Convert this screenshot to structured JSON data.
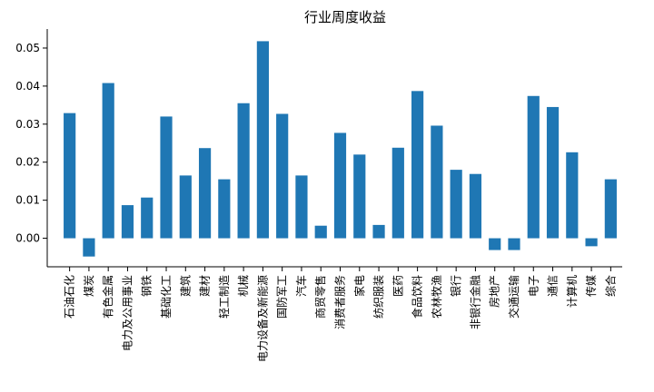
{
  "chart_data": {
    "type": "bar",
    "title": "行业周度收益",
    "xlabel": "",
    "ylabel": "",
    "ylim": [
      -0.0075,
      0.055
    ],
    "yticks": [
      0.0,
      0.01,
      0.02,
      0.03,
      0.04,
      0.05
    ],
    "ytick_labels": [
      "0.00",
      "0.01",
      "0.02",
      "0.03",
      "0.04",
      "0.05"
    ],
    "grid": false,
    "bar_color": "#1f77b4",
    "categories": [
      "石油石化",
      "煤炭",
      "有色金属",
      "电力及公用事业",
      "钢铁",
      "基础化工",
      "建筑",
      "建材",
      "轻工制造",
      "机械",
      "电力设备及新能源",
      "国防军工",
      "汽车",
      "商贸零售",
      "消费者服务",
      "家电",
      "纺织服装",
      "医药",
      "食品饮料",
      "农林牧渔",
      "银行",
      "非银行金融",
      "房地产",
      "交通运输",
      "电子",
      "通信",
      "计算机",
      "传媒",
      "综合"
    ],
    "values": [
      0.0329,
      -0.0048,
      0.0408,
      0.0087,
      0.0107,
      0.032,
      0.0165,
      0.0237,
      0.0155,
      0.0355,
      0.0518,
      0.0327,
      0.0165,
      0.0033,
      0.0277,
      0.022,
      0.0035,
      0.0238,
      0.0387,
      0.0296,
      0.018,
      0.0169,
      -0.0031,
      -0.0031,
      0.0374,
      0.0345,
      0.0226,
      -0.0021,
      0.0155
    ]
  }
}
